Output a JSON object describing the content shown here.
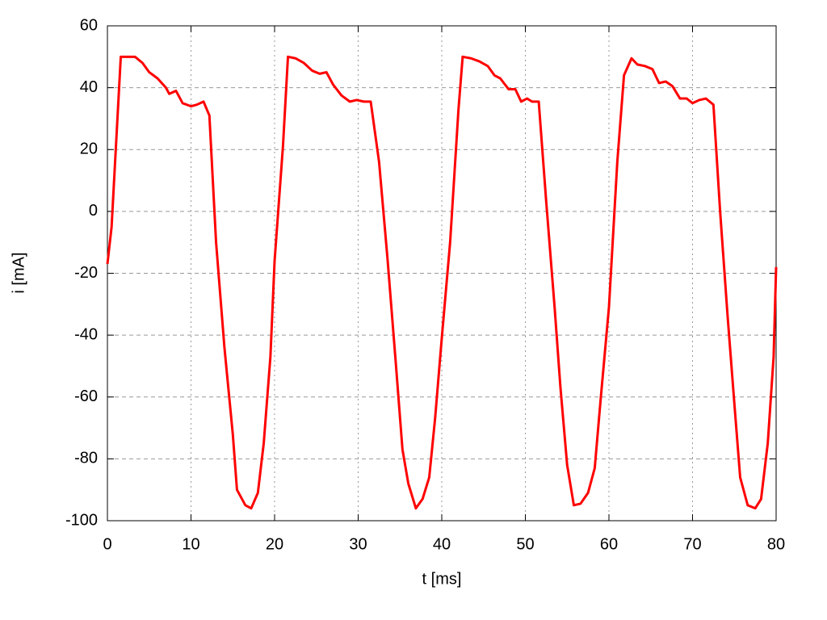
{
  "chart_data": {
    "type": "line",
    "xlabel": "t [ms]",
    "ylabel": "i [mA]",
    "x": [
      0,
      0.5,
      1.6,
      2.5,
      3.3,
      4.2,
      5,
      6,
      7,
      7.4,
      8.2,
      9,
      10,
      10.7,
      11.5,
      12.2,
      13,
      14,
      15,
      15.5,
      16.5,
      17.2,
      18,
      18.7,
      19.5,
      20,
      21,
      21.6,
      22.5,
      23.5,
      24.5,
      25.4,
      26.2,
      27,
      28,
      29,
      29.8,
      30.7,
      31.5,
      32.5,
      33.5,
      34.5,
      35.3,
      36,
      36.9,
      37.7,
      38.5,
      39.2,
      40,
      41,
      42,
      42.5,
      43.5,
      44.5,
      45.5,
      46.3,
      47,
      48,
      48.8,
      49.5,
      50.2,
      50.8,
      51.6,
      52.5,
      53.5,
      54.2,
      55,
      55.8,
      56.6,
      57.5,
      58.3,
      59,
      60,
      61,
      61.8,
      62.7,
      63.4,
      64.3,
      65.2,
      66,
      66.8,
      67.6,
      68.5,
      69.3,
      70,
      70.8,
      71.6,
      72.5,
      73.3,
      74.2,
      75,
      75.7,
      76.6,
      77.5,
      78.2,
      79,
      79.7,
      80
    ],
    "series": [
      {
        "name": "i",
        "color": "#ff0000",
        "values": [
          -17,
          -5,
          50,
          50,
          50,
          48,
          45,
          43,
          40,
          38,
          39,
          35,
          34,
          34.5,
          35.5,
          31,
          -10,
          -44,
          -72,
          -90,
          -95,
          -96,
          -91,
          -75,
          -47,
          -16,
          21,
          50,
          49.5,
          48,
          45.5,
          44.5,
          45,
          41,
          37.5,
          35.5,
          36,
          35.5,
          35.5,
          16,
          -15,
          -49,
          -77,
          -88,
          -96,
          -93,
          -86,
          -67,
          -41,
          -10,
          33,
          50,
          49.5,
          48.5,
          47,
          44,
          43,
          39.5,
          39.5,
          35.5,
          36.5,
          35.5,
          35.5,
          3,
          -31,
          -57,
          -82,
          -95,
          -94.5,
          -91,
          -83,
          -61,
          -31,
          16,
          44,
          49.5,
          47.5,
          47,
          46,
          41.5,
          42,
          40.5,
          36.5,
          36.5,
          35,
          36,
          36.5,
          34.5,
          0,
          -34,
          -62,
          -86,
          -95,
          -96,
          -93,
          -75,
          -47,
          -18
        ]
      }
    ],
    "xlim": [
      0,
      80
    ],
    "ylim": [
      -100,
      60
    ],
    "xticks": [
      0,
      10,
      20,
      30,
      40,
      50,
      60,
      70,
      80
    ],
    "yticks": [
      -100,
      -80,
      -60,
      -40,
      -20,
      0,
      20,
      40,
      60
    ],
    "grid": true
  }
}
